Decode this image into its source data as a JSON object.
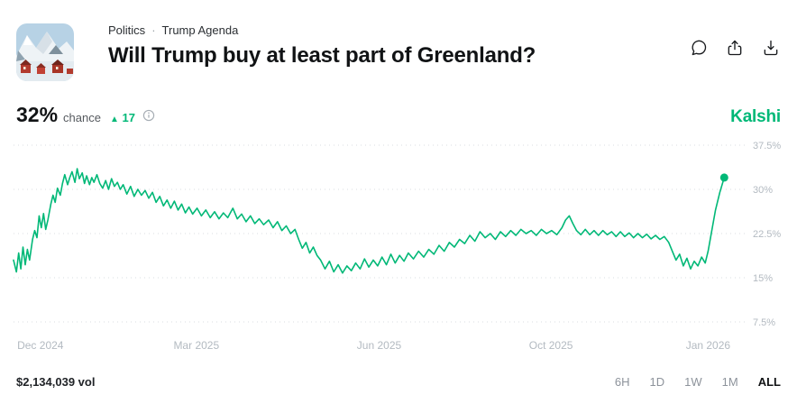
{
  "colors": {
    "accent": "#00b877",
    "muted": "#b3bac1"
  },
  "header": {
    "breadcrumb": {
      "category": "Politics",
      "separator": "·",
      "series": "Trump Agenda"
    },
    "title": "Will Trump buy at least part of Greenland?"
  },
  "stats": {
    "price": "32%",
    "chance_label": "chance",
    "delta_icon": "▲",
    "delta_value": "17"
  },
  "brand": "Kalshi",
  "footer": {
    "volume": "$2,134,039 vol",
    "ranges": [
      {
        "label": "6H",
        "selected": false
      },
      {
        "label": "1D",
        "selected": false
      },
      {
        "label": "1W",
        "selected": false
      },
      {
        "label": "1M",
        "selected": false
      },
      {
        "label": "ALL",
        "selected": true
      }
    ]
  },
  "chart_data": {
    "type": "line",
    "title": "Will Trump buy at least part of Greenland?",
    "xlabel": "",
    "ylabel": "chance (%)",
    "ylim": [
      7.5,
      37.5
    ],
    "y_ticks": [
      37.5,
      30,
      22.5,
      15,
      7.5
    ],
    "grid": true,
    "legend": "none",
    "line_color": "#00b877",
    "x_ticks": [
      {
        "label": "Dec 2024",
        "pos": 0.005,
        "anchor": "start"
      },
      {
        "label": "Mar 2025",
        "pos": 0.25,
        "anchor": "middle"
      },
      {
        "label": "Jun 2025",
        "pos": 0.5,
        "anchor": "middle"
      },
      {
        "label": "Oct 2025",
        "pos": 0.735,
        "anchor": "middle"
      },
      {
        "label": "Jan 2026",
        "pos": 0.95,
        "anchor": "middle"
      }
    ],
    "points": [
      [
        0.0,
        18.0
      ],
      [
        0.004,
        16.0
      ],
      [
        0.007,
        19.2
      ],
      [
        0.01,
        16.5
      ],
      [
        0.013,
        20.2
      ],
      [
        0.016,
        17.2
      ],
      [
        0.019,
        19.8
      ],
      [
        0.022,
        18.0
      ],
      [
        0.026,
        21.5
      ],
      [
        0.029,
        23.0
      ],
      [
        0.032,
        21.8
      ],
      [
        0.035,
        25.5
      ],
      [
        0.038,
        23.5
      ],
      [
        0.041,
        25.9
      ],
      [
        0.044,
        23.2
      ],
      [
        0.047,
        24.8
      ],
      [
        0.051,
        27.5
      ],
      [
        0.054,
        29.0
      ],
      [
        0.057,
        27.8
      ],
      [
        0.06,
        30.2
      ],
      [
        0.064,
        29.0
      ],
      [
        0.067,
        31.0
      ],
      [
        0.07,
        32.5
      ],
      [
        0.074,
        30.8
      ],
      [
        0.077,
        32.0
      ],
      [
        0.08,
        33.0
      ],
      [
        0.084,
        31.2
      ],
      [
        0.087,
        33.5
      ],
      [
        0.09,
        31.8
      ],
      [
        0.094,
        32.8
      ],
      [
        0.097,
        31.0
      ],
      [
        0.1,
        32.3
      ],
      [
        0.104,
        30.8
      ],
      [
        0.107,
        32.0
      ],
      [
        0.11,
        31.2
      ],
      [
        0.114,
        32.5
      ],
      [
        0.118,
        31.0
      ],
      [
        0.122,
        30.2
      ],
      [
        0.126,
        31.5
      ],
      [
        0.13,
        30.0
      ],
      [
        0.134,
        31.8
      ],
      [
        0.138,
        30.5
      ],
      [
        0.142,
        31.2
      ],
      [
        0.146,
        30.0
      ],
      [
        0.15,
        30.8
      ],
      [
        0.155,
        29.2
      ],
      [
        0.16,
        30.5
      ],
      [
        0.165,
        28.8
      ],
      [
        0.17,
        30.0
      ],
      [
        0.175,
        29.0
      ],
      [
        0.18,
        29.8
      ],
      [
        0.185,
        28.5
      ],
      [
        0.19,
        29.5
      ],
      [
        0.195,
        27.8
      ],
      [
        0.2,
        28.8
      ],
      [
        0.205,
        27.2
      ],
      [
        0.21,
        28.2
      ],
      [
        0.215,
        26.8
      ],
      [
        0.22,
        28.0
      ],
      [
        0.225,
        26.5
      ],
      [
        0.23,
        27.5
      ],
      [
        0.235,
        26.0
      ],
      [
        0.24,
        27.0
      ],
      [
        0.245,
        25.8
      ],
      [
        0.251,
        26.8
      ],
      [
        0.257,
        25.5
      ],
      [
        0.263,
        26.5
      ],
      [
        0.269,
        25.2
      ],
      [
        0.275,
        26.2
      ],
      [
        0.281,
        25.0
      ],
      [
        0.287,
        26.0
      ],
      [
        0.293,
        25.2
      ],
      [
        0.3,
        26.8
      ],
      [
        0.306,
        25.0
      ],
      [
        0.312,
        25.8
      ],
      [
        0.318,
        24.5
      ],
      [
        0.324,
        25.5
      ],
      [
        0.33,
        24.2
      ],
      [
        0.336,
        25.0
      ],
      [
        0.342,
        24.0
      ],
      [
        0.349,
        24.8
      ],
      [
        0.355,
        23.5
      ],
      [
        0.361,
        24.5
      ],
      [
        0.367,
        23.0
      ],
      [
        0.373,
        23.8
      ],
      [
        0.379,
        22.5
      ],
      [
        0.385,
        23.2
      ],
      [
        0.39,
        21.5
      ],
      [
        0.395,
        20.0
      ],
      [
        0.4,
        21.0
      ],
      [
        0.405,
        19.2
      ],
      [
        0.41,
        20.2
      ],
      [
        0.415,
        18.8
      ],
      [
        0.42,
        18.0
      ],
      [
        0.426,
        16.5
      ],
      [
        0.432,
        17.8
      ],
      [
        0.438,
        16.0
      ],
      [
        0.444,
        17.2
      ],
      [
        0.45,
        15.8
      ],
      [
        0.456,
        17.0
      ],
      [
        0.462,
        16.2
      ],
      [
        0.468,
        17.5
      ],
      [
        0.474,
        16.5
      ],
      [
        0.48,
        18.2
      ],
      [
        0.486,
        16.8
      ],
      [
        0.492,
        18.0
      ],
      [
        0.498,
        17.0
      ],
      [
        0.504,
        18.5
      ],
      [
        0.51,
        17.2
      ],
      [
        0.516,
        19.0
      ],
      [
        0.522,
        17.5
      ],
      [
        0.528,
        18.8
      ],
      [
        0.534,
        17.8
      ],
      [
        0.54,
        19.2
      ],
      [
        0.547,
        18.2
      ],
      [
        0.554,
        19.5
      ],
      [
        0.561,
        18.5
      ],
      [
        0.568,
        19.8
      ],
      [
        0.575,
        19.0
      ],
      [
        0.582,
        20.5
      ],
      [
        0.589,
        19.5
      ],
      [
        0.596,
        21.0
      ],
      [
        0.603,
        20.2
      ],
      [
        0.61,
        21.5
      ],
      [
        0.617,
        20.8
      ],
      [
        0.624,
        22.2
      ],
      [
        0.631,
        21.2
      ],
      [
        0.638,
        22.8
      ],
      [
        0.645,
        21.8
      ],
      [
        0.652,
        22.5
      ],
      [
        0.659,
        21.5
      ],
      [
        0.666,
        22.8
      ],
      [
        0.673,
        22.0
      ],
      [
        0.68,
        23.0
      ],
      [
        0.687,
        22.2
      ],
      [
        0.694,
        23.2
      ],
      [
        0.701,
        22.5
      ],
      [
        0.708,
        23.0
      ],
      [
        0.715,
        22.2
      ],
      [
        0.722,
        23.2
      ],
      [
        0.729,
        22.5
      ],
      [
        0.736,
        23.0
      ],
      [
        0.743,
        22.3
      ],
      [
        0.75,
        23.5
      ],
      [
        0.755,
        24.8
      ],
      [
        0.76,
        25.5
      ],
      [
        0.765,
        24.2
      ],
      [
        0.77,
        23.0
      ],
      [
        0.776,
        22.3
      ],
      [
        0.782,
        23.2
      ],
      [
        0.788,
        22.3
      ],
      [
        0.794,
        23.0
      ],
      [
        0.8,
        22.2
      ],
      [
        0.806,
        23.0
      ],
      [
        0.812,
        22.3
      ],
      [
        0.818,
        22.8
      ],
      [
        0.824,
        22.0
      ],
      [
        0.83,
        22.8
      ],
      [
        0.836,
        22.0
      ],
      [
        0.842,
        22.6
      ],
      [
        0.848,
        21.8
      ],
      [
        0.854,
        22.5
      ],
      [
        0.86,
        21.8
      ],
      [
        0.866,
        22.4
      ],
      [
        0.872,
        21.6
      ],
      [
        0.878,
        22.2
      ],
      [
        0.884,
        21.5
      ],
      [
        0.89,
        22.0
      ],
      [
        0.896,
        21.0
      ],
      [
        0.901,
        19.5
      ],
      [
        0.906,
        18.0
      ],
      [
        0.911,
        19.0
      ],
      [
        0.916,
        17.0
      ],
      [
        0.921,
        18.3
      ],
      [
        0.926,
        16.5
      ],
      [
        0.931,
        17.8
      ],
      [
        0.936,
        17.0
      ],
      [
        0.941,
        18.5
      ],
      [
        0.946,
        17.5
      ],
      [
        0.95,
        19.5
      ],
      [
        0.955,
        23.0
      ],
      [
        0.96,
        26.5
      ],
      [
        0.966,
        29.5
      ],
      [
        0.972,
        32.0
      ]
    ]
  }
}
